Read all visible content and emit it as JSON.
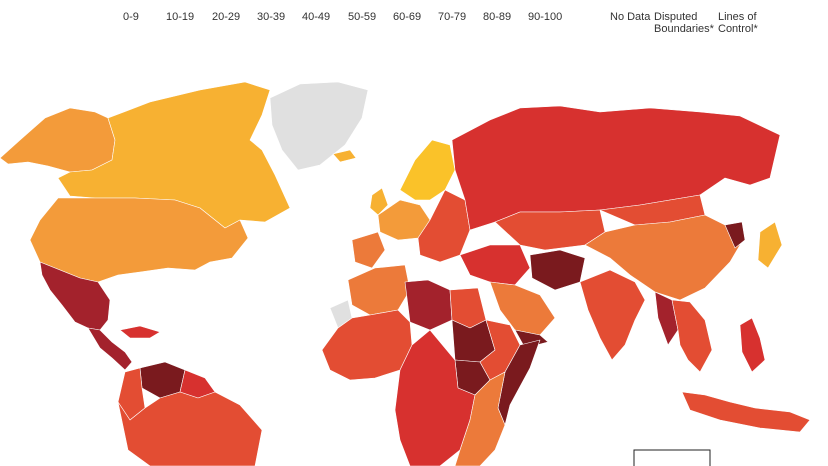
{
  "legend": {
    "bins": [
      "0-9",
      "10-19",
      "20-29",
      "30-39",
      "40-49",
      "50-59",
      "60-69",
      "70-79",
      "80-89",
      "90-100"
    ],
    "no_data": "No Data",
    "disputed": [
      "Disputed",
      "Boundaries*"
    ],
    "lines_of_control": [
      "Lines of",
      "Control*"
    ]
  },
  "colors": {
    "very_dark": "#7a1a1e",
    "dark": "#a3222c",
    "red": "#d7312f",
    "red_orange": "#e34d33",
    "orange": "#ec7a3a",
    "light_orange": "#f39b3a",
    "yellow_orange": "#f7b132",
    "yellow": "#fac229",
    "no_data": "#e0e0e0",
    "ocean": "#ffffff"
  },
  "map": {
    "regions": [
      {
        "name": "alaska",
        "color": "light_orange"
      },
      {
        "name": "canada",
        "color": "yellow_orange"
      },
      {
        "name": "greenland",
        "color": "no_data"
      },
      {
        "name": "usa",
        "color": "light_orange"
      },
      {
        "name": "mexico",
        "color": "dark"
      },
      {
        "name": "central-america",
        "color": "dark"
      },
      {
        "name": "caribbean",
        "color": "red"
      },
      {
        "name": "venezuela",
        "color": "very_dark"
      },
      {
        "name": "colombia",
        "color": "red_orange"
      },
      {
        "name": "brazil",
        "color": "red_orange"
      },
      {
        "name": "guyana",
        "color": "red"
      },
      {
        "name": "iceland",
        "color": "yellow_orange"
      },
      {
        "name": "scandinavia",
        "color": "yellow"
      },
      {
        "name": "uk",
        "color": "yellow_orange"
      },
      {
        "name": "western-europe",
        "color": "light_orange"
      },
      {
        "name": "iberia",
        "color": "orange"
      },
      {
        "name": "eastern-europe",
        "color": "red_orange"
      },
      {
        "name": "russia",
        "color": "red"
      },
      {
        "name": "central-asia",
        "color": "red_orange"
      },
      {
        "name": "mongolia",
        "color": "red_orange"
      },
      {
        "name": "china",
        "color": "orange"
      },
      {
        "name": "north-korea",
        "color": "very_dark"
      },
      {
        "name": "japan",
        "color": "yellow_orange"
      },
      {
        "name": "middle-east",
        "color": "red"
      },
      {
        "name": "afghanistan",
        "color": "very_dark"
      },
      {
        "name": "arabian-peninsula",
        "color": "orange"
      },
      {
        "name": "yemen",
        "color": "very_dark"
      },
      {
        "name": "india",
        "color": "red_orange"
      },
      {
        "name": "myanmar",
        "color": "dark"
      },
      {
        "name": "southeast-asia",
        "color": "red_orange"
      },
      {
        "name": "indonesia",
        "color": "red_orange"
      },
      {
        "name": "philippines",
        "color": "red"
      },
      {
        "name": "north-africa-west",
        "color": "orange"
      },
      {
        "name": "western-sahara",
        "color": "no_data"
      },
      {
        "name": "libya",
        "color": "dark"
      },
      {
        "name": "egypt",
        "color": "red_orange"
      },
      {
        "name": "sudan",
        "color": "very_dark"
      },
      {
        "name": "south-sudan",
        "color": "very_dark"
      },
      {
        "name": "horn-of-africa",
        "color": "red_orange"
      },
      {
        "name": "somalia",
        "color": "very_dark"
      },
      {
        "name": "west-africa",
        "color": "red_orange"
      },
      {
        "name": "central-africa",
        "color": "red"
      },
      {
        "name": "east-africa",
        "color": "orange"
      }
    ]
  }
}
